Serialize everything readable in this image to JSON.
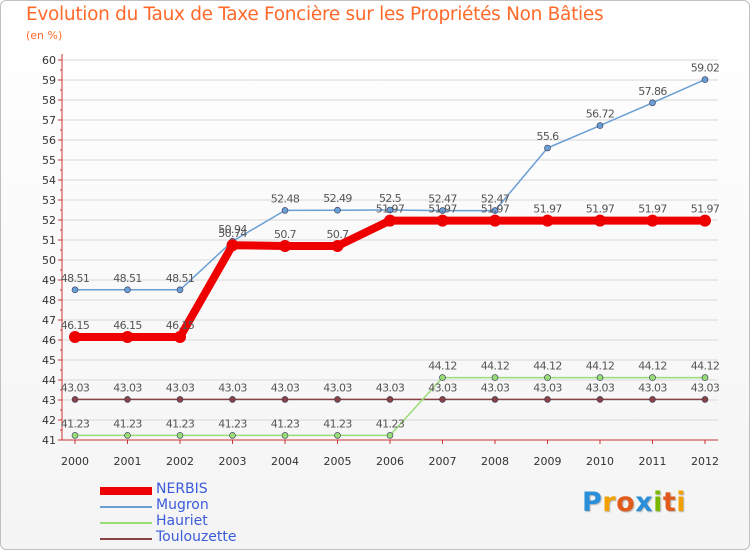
{
  "header": {
    "title": "Evolution du Taux de Taxe Foncière sur les Propriétés Non Bâties",
    "subtitle": "(en %)"
  },
  "colors": {
    "title": "#ff6a2a",
    "axis": "#cc3333",
    "grid": "#d8d8d8",
    "legend_text": "#3b5bdb",
    "value_label": "#555555"
  },
  "logo": {
    "text": "Proxiti",
    "letter_colors": [
      "#2a8fd8",
      "#f2a000",
      "#e05a1c",
      "#2a8fd8",
      "#7ab800",
      "#e05a1c",
      "#f2a000"
    ]
  },
  "chart_data": {
    "type": "line",
    "title": "Evolution du Taux de Taxe Foncière sur les Propriétés Non Bâties",
    "ylabel": "(en %)",
    "xlabel": "",
    "x": [
      "2000",
      "2001",
      "2002",
      "2003",
      "2004",
      "2005",
      "2006",
      "2007",
      "2008",
      "2009",
      "2010",
      "2011",
      "2012"
    ],
    "ylim": [
      41,
      60
    ],
    "yticks": [
      41,
      42,
      43,
      44,
      45,
      46,
      47,
      48,
      49,
      50,
      51,
      52,
      53,
      54,
      55,
      56,
      57,
      58,
      59,
      60
    ],
    "grid": true,
    "legend_position": "bottom-left",
    "series": [
      {
        "name": "NERBIS",
        "color": "#ee0000",
        "thick": true,
        "values": [
          46.15,
          46.15,
          46.15,
          50.74,
          50.7,
          50.7,
          51.97,
          51.97,
          51.97,
          51.97,
          51.97,
          51.97,
          51.97
        ],
        "labels": [
          "46.15",
          "46.15",
          "46.15",
          "50.74",
          "50.7",
          "50.7",
          "51.97",
          "51.97",
          "51.97",
          "51.97",
          "51.97",
          "51.97",
          "51.97"
        ]
      },
      {
        "name": "Mugron",
        "color": "#6a9fd4",
        "thick": false,
        "values": [
          48.51,
          48.51,
          48.51,
          50.94,
          52.48,
          52.49,
          52.5,
          52.47,
          52.47,
          55.6,
          56.72,
          57.86,
          59.02
        ],
        "labels": [
          "48.51",
          "48.51",
          "48.51",
          "50.94",
          "52.48",
          "52.49",
          "52.5",
          "52.47",
          "52.47",
          "55.6",
          "56.72",
          "57.86",
          "59.02"
        ]
      },
      {
        "name": "Hauriet",
        "color": "#99dd77",
        "thick": false,
        "values": [
          41.23,
          41.23,
          41.23,
          41.23,
          41.23,
          41.23,
          41.23,
          44.12,
          44.12,
          44.12,
          44.12,
          44.12,
          44.12
        ],
        "labels": [
          "41.23",
          "41.23",
          "41.23",
          "41.23",
          "41.23",
          "41.23",
          "41.23",
          "44.12",
          "44.12",
          "44.12",
          "44.12",
          "44.12",
          "44.12"
        ]
      },
      {
        "name": "Toulouzette",
        "color": "#884444",
        "thick": false,
        "values": [
          43.03,
          43.03,
          43.03,
          43.03,
          43.03,
          43.03,
          43.03,
          43.03,
          43.03,
          43.03,
          43.03,
          43.03,
          43.03
        ],
        "labels": [
          "43.03",
          "43.03",
          "43.03",
          "43.03",
          "43.03",
          "43.03",
          "43.03",
          "43.03",
          "43.03",
          "43.03",
          "43.03",
          "43.03",
          "43.03"
        ]
      }
    ]
  }
}
